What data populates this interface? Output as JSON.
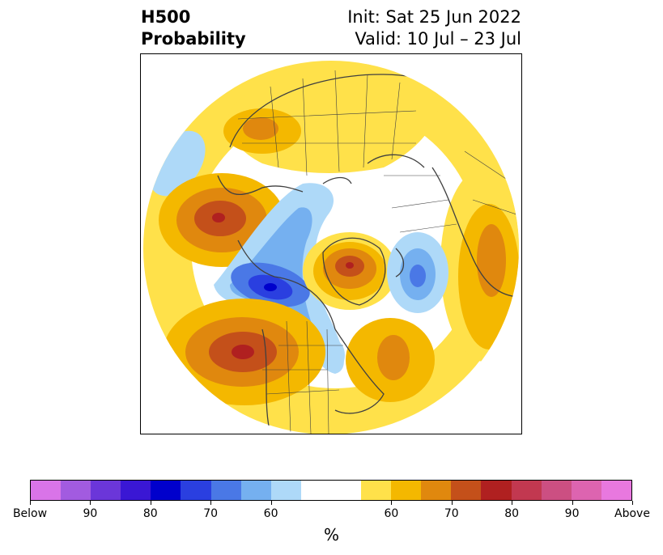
{
  "header": {
    "title_line1": "H500",
    "title_line2": "Probability",
    "init": "Init: Sat 25 Jun 2022",
    "valid": "Valid: 10 Jul – 23 Jul"
  },
  "colorbar": {
    "unit": "%",
    "below_colors": [
      "#d974e8",
      "#a25be0",
      "#6b36d9",
      "#3a17d4",
      "#0000cc",
      "#2a3fe0",
      "#4a78e6",
      "#75b0f0",
      "#aed9f8"
    ],
    "neutral_color": "#ffffff",
    "above_colors": [
      "#ffe14a",
      "#f4b800",
      "#e0880e",
      "#c4501a",
      "#b02020",
      "#c23850",
      "#cc4f82",
      "#dd64b0",
      "#e878df"
    ],
    "tick_labels": [
      "Below",
      "90",
      "80",
      "70",
      "60",
      "60",
      "70",
      "80",
      "90",
      "Above"
    ]
  },
  "map": {
    "projection": "north polar stereographic",
    "boundary_color": "#404040",
    "land_outline_color": "#404040"
  }
}
